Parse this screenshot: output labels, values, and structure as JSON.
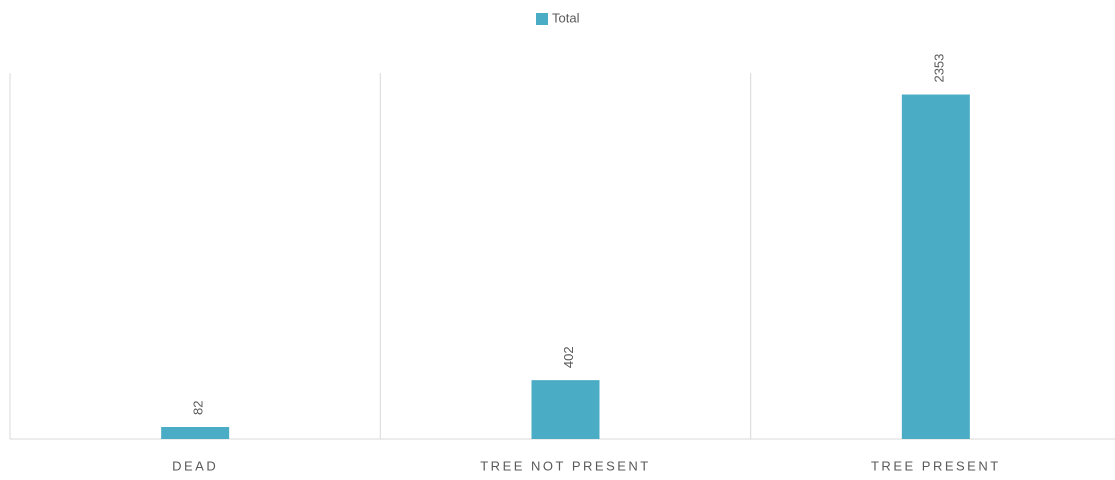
{
  "chart_data": {
    "type": "bar",
    "categories": [
      "DEAD",
      "TREE NOT PRESENT",
      "TREE PRESENT"
    ],
    "series": [
      {
        "name": "Total",
        "color": "#4bacc6",
        "values": [
          82,
          402,
          2353
        ]
      }
    ],
    "ylim": [
      0,
      2500
    ],
    "legend": "top",
    "data_labels": true
  }
}
